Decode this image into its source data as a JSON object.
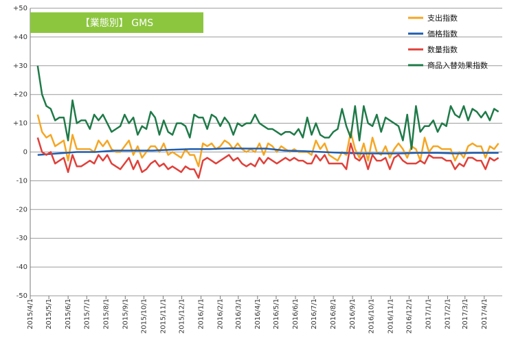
{
  "chart_data": {
    "type": "line",
    "title": "【業態別】 GMS",
    "title_box_color": "#8CC63F",
    "ylim": [
      -50,
      50
    ],
    "y_ticks": [
      "+50",
      "+40",
      "+30",
      "+20",
      "+10",
      "0",
      "-10",
      "-20",
      "-30",
      "-40",
      "-50"
    ],
    "y_tick_values": [
      50,
      40,
      30,
      20,
      10,
      0,
      -10,
      -20,
      -30,
      -40,
      -50
    ],
    "x_ticks": [
      "2015/4/1",
      "2015/5/1",
      "2015/6/1",
      "2015/7/1",
      "2015/8/1",
      "2015/9/1",
      "2015/10/1",
      "2015/11/1",
      "2015/12/1",
      "2016/1/1",
      "2016/2/1",
      "2016/3/1",
      "2016/4/1",
      "2016/5/1",
      "2016/6/1",
      "2016/7/1",
      "2016/8/1",
      "2016/9/1",
      "2016/10/1",
      "2016/11/1",
      "2016/12/1",
      "2017/1/1",
      "2017/2/1",
      "2017/3/1",
      "2017/4/1"
    ],
    "x_start": "2015-04-01",
    "x_end": "2017-04-30",
    "grid": true,
    "legend_position": "top-right",
    "series": [
      {
        "name": "支出指数",
        "color": "#F5A623",
        "x": [
          "2015-04-13",
          "2015-04-20",
          "2015-04-27",
          "2015-05-04",
          "2015-05-11",
          "2015-05-18",
          "2015-05-25",
          "2015-06-01",
          "2015-06-08",
          "2015-06-15",
          "2015-06-22",
          "2015-06-29",
          "2015-07-06",
          "2015-07-13",
          "2015-07-20",
          "2015-07-27",
          "2015-08-03",
          "2015-08-10",
          "2015-08-17",
          "2015-08-24",
          "2015-08-31",
          "2015-09-07",
          "2015-09-14",
          "2015-09-21",
          "2015-09-28",
          "2015-10-05",
          "2015-10-12",
          "2015-10-19",
          "2015-10-26",
          "2015-11-02",
          "2015-11-09",
          "2015-11-16",
          "2015-11-23",
          "2015-11-30",
          "2015-12-07",
          "2015-12-14",
          "2015-12-21",
          "2015-12-28",
          "2016-01-04",
          "2016-01-11",
          "2016-01-18",
          "2016-01-25",
          "2016-02-01",
          "2016-02-08",
          "2016-02-15",
          "2016-02-22",
          "2016-02-29",
          "2016-03-07",
          "2016-03-14",
          "2016-03-21",
          "2016-03-28",
          "2016-04-04",
          "2016-04-11",
          "2016-04-18",
          "2016-04-25",
          "2016-05-02",
          "2016-05-09",
          "2016-05-16",
          "2016-05-23",
          "2016-05-30",
          "2016-06-06",
          "2016-06-13",
          "2016-06-20",
          "2016-06-27",
          "2016-07-04",
          "2016-07-11",
          "2016-07-18",
          "2016-07-25",
          "2016-08-01",
          "2016-08-08",
          "2016-08-15",
          "2016-08-22",
          "2016-08-29",
          "2016-09-05",
          "2016-09-12",
          "2016-09-19",
          "2016-09-26",
          "2016-10-03",
          "2016-10-10",
          "2016-10-17",
          "2016-10-24",
          "2016-10-31",
          "2016-11-07",
          "2016-11-14",
          "2016-11-21",
          "2016-11-28",
          "2016-12-05",
          "2016-12-12",
          "2016-12-19",
          "2016-12-26",
          "2017-01-02",
          "2017-01-09",
          "2017-01-16",
          "2017-01-23",
          "2017-01-30",
          "2017-02-06",
          "2017-02-13",
          "2017-02-20",
          "2017-02-27",
          "2017-03-06",
          "2017-03-13",
          "2017-03-20",
          "2017-03-27",
          "2017-04-03",
          "2017-04-10",
          "2017-04-17",
          "2017-04-24"
        ],
        "y": [
          13,
          7,
          5,
          6,
          2,
          3,
          4,
          -3,
          6,
          1,
          1,
          1,
          1,
          0,
          4,
          2,
          4,
          1,
          0,
          0,
          2,
          4,
          -1,
          2,
          -2,
          0,
          2,
          2,
          0,
          3,
          -1,
          0,
          -1,
          -2,
          1,
          -1,
          -1,
          -5,
          3,
          2,
          3,
          1,
          2,
          4,
          3,
          1,
          3,
          1,
          0,
          1,
          0,
          3,
          -1,
          3,
          2,
          0,
          2,
          1,
          0,
          1,
          0,
          0,
          0,
          -1,
          4,
          1,
          3,
          -1,
          -2,
          -3,
          0,
          -1,
          7,
          1,
          -2,
          3,
          -3,
          5,
          0,
          -1,
          2,
          -2,
          1,
          3,
          1,
          -2,
          2,
          1,
          -3,
          5,
          0,
          2,
          2,
          1,
          1,
          1,
          -3,
          0,
          -2,
          2,
          3,
          2,
          2,
          -2,
          2,
          1,
          3
        ]
      },
      {
        "name": "価格指数",
        "color": "#1F5DB0",
        "x": [
          "2015-04-13",
          "2015-05-15",
          "2015-06-15",
          "2015-07-15",
          "2015-08-15",
          "2015-09-15",
          "2015-10-15",
          "2015-11-15",
          "2015-12-15",
          "2016-01-15",
          "2016-02-15",
          "2016-03-15",
          "2016-04-15",
          "2016-05-15",
          "2016-06-15",
          "2016-07-15",
          "2016-08-15",
          "2016-09-15",
          "2016-10-15",
          "2016-11-15",
          "2016-12-15",
          "2017-01-15",
          "2017-02-15",
          "2017-03-15",
          "2017-04-24"
        ],
        "y": [
          -1,
          -0.5,
          0,
          0,
          0.5,
          0.5,
          0.5,
          0.8,
          1,
          1,
          1.3,
          1.2,
          1.2,
          0.5,
          0.3,
          0,
          -0.3,
          -0.5,
          -0.5,
          -0.5,
          -0.3,
          -0.3,
          -0.5,
          -0.3,
          -0.3
        ]
      },
      {
        "name": "数量指数",
        "color": "#E0403A",
        "x": [
          "2015-04-13",
          "2015-04-20",
          "2015-04-27",
          "2015-05-04",
          "2015-05-11",
          "2015-05-18",
          "2015-05-25",
          "2015-06-01",
          "2015-06-08",
          "2015-06-15",
          "2015-06-22",
          "2015-06-29",
          "2015-07-06",
          "2015-07-13",
          "2015-07-20",
          "2015-07-27",
          "2015-08-03",
          "2015-08-10",
          "2015-08-17",
          "2015-08-24",
          "2015-08-31",
          "2015-09-07",
          "2015-09-14",
          "2015-09-21",
          "2015-09-28",
          "2015-10-05",
          "2015-10-12",
          "2015-10-19",
          "2015-10-26",
          "2015-11-02",
          "2015-11-09",
          "2015-11-16",
          "2015-11-23",
          "2015-11-30",
          "2015-12-07",
          "2015-12-14",
          "2015-12-21",
          "2015-12-28",
          "2016-01-04",
          "2016-01-11",
          "2016-01-18",
          "2016-01-25",
          "2016-02-01",
          "2016-02-08",
          "2016-02-15",
          "2016-02-22",
          "2016-02-29",
          "2016-03-07",
          "2016-03-14",
          "2016-03-21",
          "2016-03-28",
          "2016-04-04",
          "2016-04-11",
          "2016-04-18",
          "2016-04-25",
          "2016-05-02",
          "2016-05-09",
          "2016-05-16",
          "2016-05-23",
          "2016-05-30",
          "2016-06-06",
          "2016-06-13",
          "2016-06-20",
          "2016-06-27",
          "2016-07-04",
          "2016-07-11",
          "2016-07-18",
          "2016-07-25",
          "2016-08-01",
          "2016-08-08",
          "2016-08-15",
          "2016-08-22",
          "2016-08-29",
          "2016-09-05",
          "2016-09-12",
          "2016-09-19",
          "2016-09-26",
          "2016-10-03",
          "2016-10-10",
          "2016-10-17",
          "2016-10-24",
          "2016-10-31",
          "2016-11-07",
          "2016-11-14",
          "2016-11-21",
          "2016-11-28",
          "2016-12-05",
          "2016-12-12",
          "2016-12-19",
          "2016-12-26",
          "2017-01-02",
          "2017-01-09",
          "2017-01-16",
          "2017-01-23",
          "2017-01-30",
          "2017-02-06",
          "2017-02-13",
          "2017-02-20",
          "2017-02-27",
          "2017-03-06",
          "2017-03-13",
          "2017-03-20",
          "2017-03-27",
          "2017-04-03",
          "2017-04-10",
          "2017-04-17",
          "2017-04-24"
        ],
        "y": [
          5,
          0,
          -1,
          0,
          -4,
          -3,
          -2,
          -7,
          -1,
          -5,
          -5,
          -4,
          -3,
          -4,
          -1,
          -3,
          -1,
          -4,
          -5,
          -6,
          -4,
          -2,
          -6,
          -3,
          -7,
          -6,
          -4,
          -3,
          -5,
          -4,
          -6,
          -5,
          -6,
          -7,
          -5,
          -6,
          -6,
          -9,
          -3,
          -2,
          -3,
          -4,
          -3,
          -2,
          -1,
          -3,
          -2,
          -4,
          -5,
          -4,
          -5,
          -2,
          -4,
          -2,
          -3,
          -4,
          -3,
          -2,
          -3,
          -2,
          -3,
          -3,
          -4,
          -4,
          -1,
          -3,
          -1,
          -4,
          -4,
          -4,
          -4,
          -6,
          3,
          -2,
          -3,
          -1,
          -6,
          -1,
          -3,
          -3,
          -2,
          -6,
          -2,
          -1,
          -3,
          -4,
          -4,
          -4,
          -3,
          -4,
          -1,
          -2,
          -2,
          -2,
          -3,
          -3,
          -6,
          -4,
          -5,
          -2,
          -2,
          -3,
          -3,
          -6,
          -2,
          -3,
          -2
        ]
      },
      {
        "name": "商品入替効果指数",
        "color": "#1E7A48",
        "x": [
          "2015-04-13",
          "2015-04-20",
          "2015-04-27",
          "2015-05-04",
          "2015-05-11",
          "2015-05-18",
          "2015-05-25",
          "2015-06-01",
          "2015-06-08",
          "2015-06-15",
          "2015-06-22",
          "2015-06-29",
          "2015-07-06",
          "2015-07-13",
          "2015-07-20",
          "2015-07-27",
          "2015-08-03",
          "2015-08-10",
          "2015-08-17",
          "2015-08-24",
          "2015-08-31",
          "2015-09-07",
          "2015-09-14",
          "2015-09-21",
          "2015-09-28",
          "2015-10-05",
          "2015-10-12",
          "2015-10-19",
          "2015-10-26",
          "2015-11-02",
          "2015-11-09",
          "2015-11-16",
          "2015-11-23",
          "2015-11-30",
          "2015-12-07",
          "2015-12-14",
          "2015-12-21",
          "2015-12-28",
          "2016-01-04",
          "2016-01-11",
          "2016-01-18",
          "2016-01-25",
          "2016-02-01",
          "2016-02-08",
          "2016-02-15",
          "2016-02-22",
          "2016-02-29",
          "2016-03-07",
          "2016-03-14",
          "2016-03-21",
          "2016-03-28",
          "2016-04-04",
          "2016-04-11",
          "2016-04-18",
          "2016-04-25",
          "2016-05-02",
          "2016-05-09",
          "2016-05-16",
          "2016-05-23",
          "2016-05-30",
          "2016-06-06",
          "2016-06-13",
          "2016-06-20",
          "2016-06-27",
          "2016-07-04",
          "2016-07-11",
          "2016-07-18",
          "2016-07-25",
          "2016-08-01",
          "2016-08-08",
          "2016-08-15",
          "2016-08-22",
          "2016-08-29",
          "2016-09-05",
          "2016-09-12",
          "2016-09-19",
          "2016-09-26",
          "2016-10-03",
          "2016-10-10",
          "2016-10-17",
          "2016-10-24",
          "2016-10-31",
          "2016-11-07",
          "2016-11-14",
          "2016-11-21",
          "2016-11-28",
          "2016-12-05",
          "2016-12-12",
          "2016-12-19",
          "2016-12-26",
          "2017-01-02",
          "2017-01-09",
          "2017-01-16",
          "2017-01-23",
          "2017-01-30",
          "2017-02-06",
          "2017-02-13",
          "2017-02-20",
          "2017-02-27",
          "2017-03-06",
          "2017-03-13",
          "2017-03-20",
          "2017-03-27",
          "2017-04-03",
          "2017-04-10",
          "2017-04-17",
          "2017-04-24"
        ],
        "y": [
          30,
          20,
          16,
          15,
          11,
          12,
          12,
          4,
          18,
          10,
          11,
          11,
          8,
          13,
          11,
          13,
          10,
          7,
          8,
          9,
          13,
          10,
          12,
          6,
          9,
          8,
          14,
          12,
          6,
          11,
          7,
          6,
          10,
          10,
          9,
          5,
          13,
          12,
          12,
          8,
          13,
          12,
          9,
          12,
          10,
          6,
          10,
          9,
          10,
          10,
          13,
          10,
          9,
          8,
          8,
          7,
          6,
          7,
          7,
          6,
          8,
          5,
          12,
          6,
          10,
          6,
          5,
          5,
          7,
          8,
          15,
          9,
          5,
          16,
          4,
          16,
          10,
          9,
          13,
          7,
          12,
          11,
          10,
          9,
          4,
          13,
          1,
          16,
          7,
          9,
          9,
          11,
          7,
          10,
          9,
          16,
          13,
          12,
          16,
          11,
          15,
          14,
          12,
          14,
          11,
          15,
          14
        ]
      }
    ]
  }
}
